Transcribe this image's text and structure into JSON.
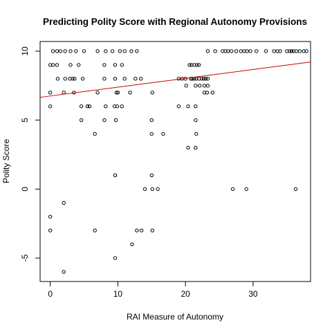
{
  "chart_data": {
    "type": "scatter",
    "title": "Predicting Polity Score with Regional Autonomy Provisions",
    "xlabel": "RAI Measure of Autonomy",
    "ylabel": "Polity Score",
    "xlim": [
      -1.5,
      38.5
    ],
    "ylim": [
      -6.7,
      10.7
    ],
    "x_ticks": [
      0,
      10,
      20,
      30
    ],
    "x_tick_labels": [
      "0",
      "10",
      "20",
      "30"
    ],
    "y_ticks": [
      -5,
      0,
      5,
      10
    ],
    "y_tick_labels": [
      "-5",
      "0",
      "5",
      "10"
    ],
    "grid": false,
    "legend": "none",
    "colors": {
      "points": "#000000",
      "fit_line": "#cc0000"
    },
    "fit_line": {
      "intercept": 6.75,
      "slope": 0.064
    },
    "points": [
      [
        0.4,
        10
      ],
      [
        1.0,
        10
      ],
      [
        1.5,
        10
      ],
      [
        2.2,
        10
      ],
      [
        3.0,
        10
      ],
      [
        3.8,
        10
      ],
      [
        5.0,
        10
      ],
      [
        7.0,
        10
      ],
      [
        8.2,
        10
      ],
      [
        9.2,
        10
      ],
      [
        10.3,
        10
      ],
      [
        11.0,
        10
      ],
      [
        12.0,
        10
      ],
      [
        12.8,
        10
      ],
      [
        0.0,
        9
      ],
      [
        0.4,
        9
      ],
      [
        1.0,
        9
      ],
      [
        3.0,
        9
      ],
      [
        4.2,
        9
      ],
      [
        8.0,
        9
      ],
      [
        9.6,
        9
      ],
      [
        10.6,
        9
      ],
      [
        1.1,
        8
      ],
      [
        2.2,
        8
      ],
      [
        2.9,
        8
      ],
      [
        3.3,
        8
      ],
      [
        3.6,
        8
      ],
      [
        4.8,
        8
      ],
      [
        8.0,
        8
      ],
      [
        9.6,
        8
      ],
      [
        11.0,
        8
      ],
      [
        12.6,
        8
      ],
      [
        13.4,
        8
      ],
      [
        0.0,
        7
      ],
      [
        2.0,
        7
      ],
      [
        3.5,
        7
      ],
      [
        7.0,
        7
      ],
      [
        9.8,
        7
      ],
      [
        10.0,
        7
      ],
      [
        11.8,
        7
      ],
      [
        15.1,
        7
      ],
      [
        0.0,
        6
      ],
      [
        4.6,
        6
      ],
      [
        5.5,
        6
      ],
      [
        5.8,
        6
      ],
      [
        8.2,
        6
      ],
      [
        9.5,
        6
      ],
      [
        9.9,
        6
      ],
      [
        10.6,
        6
      ],
      [
        4.6,
        5
      ],
      [
        8.0,
        5
      ],
      [
        9.7,
        5
      ],
      [
        15.0,
        5
      ],
      [
        6.6,
        4
      ],
      [
        15.0,
        4
      ],
      [
        16.7,
        4
      ],
      [
        9.6,
        1
      ],
      [
        15.0,
        1
      ],
      [
        14.0,
        0
      ],
      [
        15.1,
        0
      ],
      [
        15.9,
        0
      ],
      [
        0.0,
        -2
      ],
      [
        2.0,
        -1
      ],
      [
        0.0,
        -3
      ],
      [
        6.6,
        -3
      ],
      [
        12.8,
        -3
      ],
      [
        13.5,
        -3
      ],
      [
        15.1,
        -3
      ],
      [
        12.1,
        -4
      ],
      [
        9.6,
        -5
      ],
      [
        2.0,
        -6
      ],
      [
        19.0,
        8
      ],
      [
        19.5,
        8
      ],
      [
        20.0,
        8
      ],
      [
        20.8,
        8
      ],
      [
        21.0,
        8
      ],
      [
        21.3,
        8
      ],
      [
        21.6,
        8
      ],
      [
        22.0,
        8
      ],
      [
        22.4,
        8
      ],
      [
        22.7,
        8
      ],
      [
        23.0,
        8
      ],
      [
        23.3,
        8
      ],
      [
        20.6,
        9
      ],
      [
        20.9,
        9
      ],
      [
        21.3,
        9
      ],
      [
        21.7,
        9
      ],
      [
        22.0,
        9
      ],
      [
        20.1,
        7.5
      ],
      [
        21.5,
        7.5
      ],
      [
        22.1,
        7.5
      ],
      [
        22.8,
        7.5
      ],
      [
        23.3,
        7.5
      ],
      [
        22.8,
        7
      ],
      [
        23.2,
        7
      ],
      [
        24.0,
        7
      ],
      [
        19.0,
        6
      ],
      [
        20.4,
        6
      ],
      [
        21.5,
        6
      ],
      [
        21.5,
        5
      ],
      [
        21.6,
        4
      ],
      [
        20.4,
        3
      ],
      [
        21.5,
        3
      ],
      [
        23.3,
        10
      ],
      [
        24.4,
        10
      ],
      [
        25.5,
        10
      ],
      [
        25.9,
        10
      ],
      [
        26.3,
        10
      ],
      [
        26.8,
        10
      ],
      [
        27.5,
        10
      ],
      [
        28.2,
        10
      ],
      [
        28.7,
        10
      ],
      [
        29.1,
        10
      ],
      [
        29.6,
        10
      ],
      [
        30.5,
        10
      ],
      [
        31.9,
        10
      ],
      [
        33.1,
        10
      ],
      [
        33.6,
        10
      ],
      [
        34.0,
        10
      ],
      [
        35.0,
        10
      ],
      [
        35.4,
        10
      ],
      [
        35.7,
        10
      ],
      [
        36.0,
        10
      ],
      [
        36.4,
        10
      ],
      [
        36.9,
        10
      ],
      [
        37.5,
        10
      ],
      [
        37.9,
        10
      ],
      [
        27.0,
        0
      ],
      [
        29.0,
        0
      ],
      [
        36.3,
        0
      ]
    ]
  }
}
